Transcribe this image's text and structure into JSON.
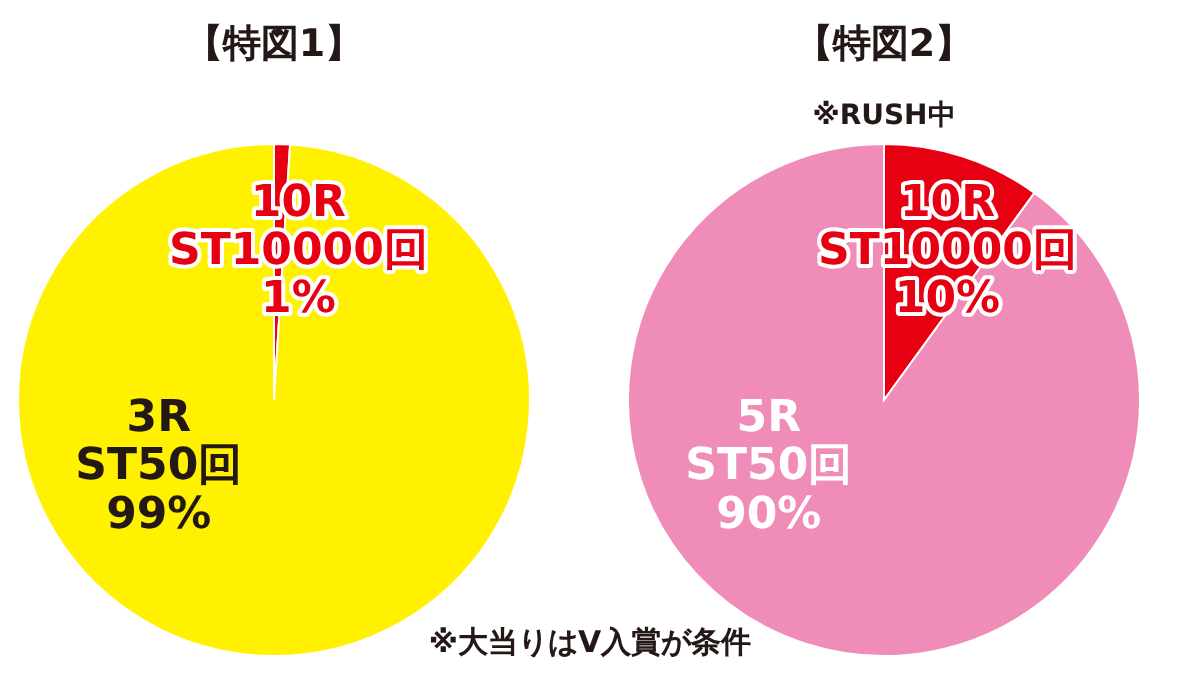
{
  "chart_data": [
    {
      "type": "pie",
      "title": "【特図1】",
      "categories": [
        "3R\nST50回",
        "10R\nST10000回"
      ],
      "values": [
        99,
        1
      ],
      "colors": [
        "#fff100",
        "#e60012"
      ],
      "value_labels": [
        "99%",
        "1%"
      ]
    },
    {
      "type": "pie",
      "title": "【特図2】",
      "subtitle": "※RUSH中",
      "categories": [
        "5R\nST50回",
        "10R\nST10000回"
      ],
      "values": [
        90,
        10
      ],
      "colors": [
        "#f08cb8",
        "#e60012"
      ],
      "value_labels": [
        "90%",
        "10%"
      ],
      "annotations": [
        "※大当りはV入賞が条件"
      ]
    }
  ]
}
